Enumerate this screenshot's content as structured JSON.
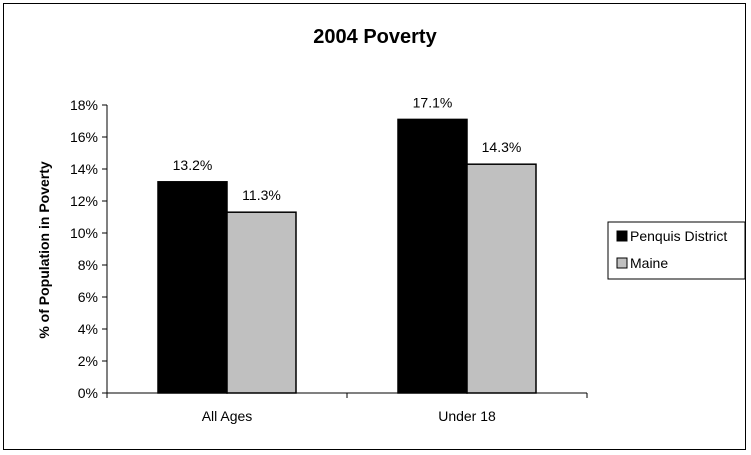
{
  "chart_data": {
    "type": "bar",
    "title": "2004 Poverty",
    "ylabel": "% of Population in Poverty",
    "xlabel": "",
    "categories": [
      "All Ages",
      "Under 18"
    ],
    "series": [
      {
        "name": "Penquis District",
        "values": [
          13.2,
          17.1
        ],
        "labels": [
          "13.2%",
          "17.1%"
        ],
        "color": "#000000"
      },
      {
        "name": "Maine",
        "values": [
          11.3,
          14.3
        ],
        "labels": [
          "11.3%",
          "14.3%"
        ],
        "color": "#c0c0c0"
      }
    ],
    "ylim": [
      0,
      18
    ],
    "yticks": [
      "0%",
      "2%",
      "4%",
      "6%",
      "8%",
      "10%",
      "12%",
      "14%",
      "16%",
      "18%"
    ],
    "ytick_values": [
      0,
      2,
      4,
      6,
      8,
      10,
      12,
      14,
      16,
      18
    ],
    "grid": false,
    "legend": "right"
  }
}
